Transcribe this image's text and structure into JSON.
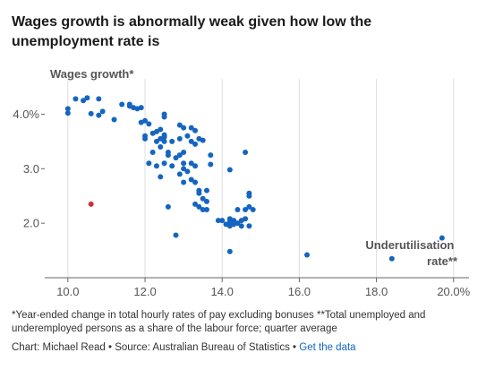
{
  "title": "Wages growth is abnormally weak given how low the unemployment rate is",
  "footnote": "*Year-ended change in total hourly rates of pay excluding bonuses **Total unemployed and underemployed persons as a share of the labour force; quarter average",
  "credits": {
    "text": "Chart: Michael Read • Source: Australian Bureau of Statistics • ",
    "link_label": "Get the data"
  },
  "colors": {
    "point": "#1565c0",
    "highlight": "#d32f2f",
    "grid": "#dddddd",
    "axis": "#666666",
    "label": "#555555"
  },
  "chart_data": {
    "type": "scatter",
    "ylabel": "Wages growth*",
    "xlabel_lines": [
      "Underutilisation",
      "rate**"
    ],
    "xlim": [
      9.4,
      20.4
    ],
    "ylim": [
      1.0,
      4.55
    ],
    "x_ticks": [
      10,
      12,
      14,
      16,
      18,
      20
    ],
    "x_tick_labels": [
      "10.0",
      "12.0",
      "14.0",
      "16.0",
      "18.0",
      "20.0%"
    ],
    "y_ticks": [
      2,
      3,
      4
    ],
    "y_tick_labels": [
      "2.0",
      "3.0",
      "4.0%"
    ],
    "grid": "vertical",
    "highlight": {
      "x": 10.6,
      "y": 2.35
    },
    "points": [
      {
        "x": 10.0,
        "y": 4.1
      },
      {
        "x": 10.0,
        "y": 4.02
      },
      {
        "x": 10.2,
        "y": 4.28
      },
      {
        "x": 10.4,
        "y": 4.25
      },
      {
        "x": 10.5,
        "y": 4.3
      },
      {
        "x": 10.6,
        "y": 4.01
      },
      {
        "x": 10.8,
        "y": 4.28
      },
      {
        "x": 10.8,
        "y": 3.98
      },
      {
        "x": 10.9,
        "y": 4.05
      },
      {
        "x": 11.2,
        "y": 3.9
      },
      {
        "x": 11.4,
        "y": 4.18
      },
      {
        "x": 11.6,
        "y": 4.15
      },
      {
        "x": 11.6,
        "y": 4.18
      },
      {
        "x": 11.7,
        "y": 4.12
      },
      {
        "x": 11.8,
        "y": 4.1
      },
      {
        "x": 11.9,
        "y": 4.12
      },
      {
        "x": 11.9,
        "y": 3.85
      },
      {
        "x": 12.0,
        "y": 3.88
      },
      {
        "x": 12.1,
        "y": 3.82
      },
      {
        "x": 12.0,
        "y": 3.6
      },
      {
        "x": 12.0,
        "y": 3.55
      },
      {
        "x": 12.2,
        "y": 3.65
      },
      {
        "x": 12.3,
        "y": 3.68
      },
      {
        "x": 12.3,
        "y": 3.5
      },
      {
        "x": 12.4,
        "y": 3.72
      },
      {
        "x": 12.4,
        "y": 3.4
      },
      {
        "x": 12.4,
        "y": 3.55
      },
      {
        "x": 12.5,
        "y": 3.58
      },
      {
        "x": 12.5,
        "y": 3.5
      },
      {
        "x": 12.5,
        "y": 3.62
      },
      {
        "x": 12.2,
        "y": 3.3
      },
      {
        "x": 12.1,
        "y": 3.1
      },
      {
        "x": 12.3,
        "y": 3.05
      },
      {
        "x": 12.4,
        "y": 2.85
      },
      {
        "x": 12.5,
        "y": 3.1
      },
      {
        "x": 12.6,
        "y": 3.3
      },
      {
        "x": 12.6,
        "y": 3.25
      },
      {
        "x": 12.7,
        "y": 3.5
      },
      {
        "x": 12.8,
        "y": 3.2
      },
      {
        "x": 12.7,
        "y": 3.05
      },
      {
        "x": 12.6,
        "y": 2.3
      },
      {
        "x": 12.5,
        "y": 4.0
      },
      {
        "x": 12.5,
        "y": 3.95
      },
      {
        "x": 12.9,
        "y": 3.8
      },
      {
        "x": 13.0,
        "y": 3.75
      },
      {
        "x": 12.9,
        "y": 3.55
      },
      {
        "x": 13.1,
        "y": 3.6
      },
      {
        "x": 13.2,
        "y": 3.75
      },
      {
        "x": 13.3,
        "y": 3.7
      },
      {
        "x": 13.2,
        "y": 3.5
      },
      {
        "x": 13.3,
        "y": 3.45
      },
      {
        "x": 13.0,
        "y": 3.3
      },
      {
        "x": 12.9,
        "y": 3.25
      },
      {
        "x": 13.0,
        "y": 3.1
      },
      {
        "x": 13.0,
        "y": 3.0
      },
      {
        "x": 13.1,
        "y": 2.95
      },
      {
        "x": 13.2,
        "y": 3.1
      },
      {
        "x": 13.3,
        "y": 3.05
      },
      {
        "x": 12.9,
        "y": 2.9
      },
      {
        "x": 13.0,
        "y": 2.75
      },
      {
        "x": 13.2,
        "y": 2.8
      },
      {
        "x": 13.3,
        "y": 2.75
      },
      {
        "x": 13.4,
        "y": 2.6
      },
      {
        "x": 13.4,
        "y": 2.55
      },
      {
        "x": 13.6,
        "y": 2.6
      },
      {
        "x": 13.5,
        "y": 2.45
      },
      {
        "x": 13.6,
        "y": 2.4
      },
      {
        "x": 13.3,
        "y": 2.35
      },
      {
        "x": 13.4,
        "y": 2.3
      },
      {
        "x": 13.5,
        "y": 2.25
      },
      {
        "x": 13.6,
        "y": 2.25
      },
      {
        "x": 13.4,
        "y": 3.55
      },
      {
        "x": 13.5,
        "y": 3.52
      },
      {
        "x": 13.7,
        "y": 3.25
      },
      {
        "x": 13.7,
        "y": 3.08
      },
      {
        "x": 12.8,
        "y": 1.78
      },
      {
        "x": 13.9,
        "y": 2.05
      },
      {
        "x": 14.0,
        "y": 2.05
      },
      {
        "x": 14.1,
        "y": 1.98
      },
      {
        "x": 14.2,
        "y": 2.08
      },
      {
        "x": 14.2,
        "y": 2.03
      },
      {
        "x": 14.2,
        "y": 1.95
      },
      {
        "x": 14.3,
        "y": 2.05
      },
      {
        "x": 14.3,
        "y": 1.98
      },
      {
        "x": 14.4,
        "y": 2.0
      },
      {
        "x": 14.5,
        "y": 2.05
      },
      {
        "x": 14.5,
        "y": 1.95
      },
      {
        "x": 14.6,
        "y": 2.08
      },
      {
        "x": 14.6,
        "y": 2.25
      },
      {
        "x": 14.7,
        "y": 1.95
      },
      {
        "x": 14.4,
        "y": 2.25
      },
      {
        "x": 14.7,
        "y": 2.3
      },
      {
        "x": 14.8,
        "y": 2.25
      },
      {
        "x": 14.7,
        "y": 2.5
      },
      {
        "x": 14.7,
        "y": 2.55
      },
      {
        "x": 14.2,
        "y": 2.98
      },
      {
        "x": 14.6,
        "y": 3.3
      },
      {
        "x": 14.2,
        "y": 1.48
      },
      {
        "x": 16.2,
        "y": 1.42
      },
      {
        "x": 18.4,
        "y": 1.35
      },
      {
        "x": 19.7,
        "y": 1.73
      }
    ]
  }
}
